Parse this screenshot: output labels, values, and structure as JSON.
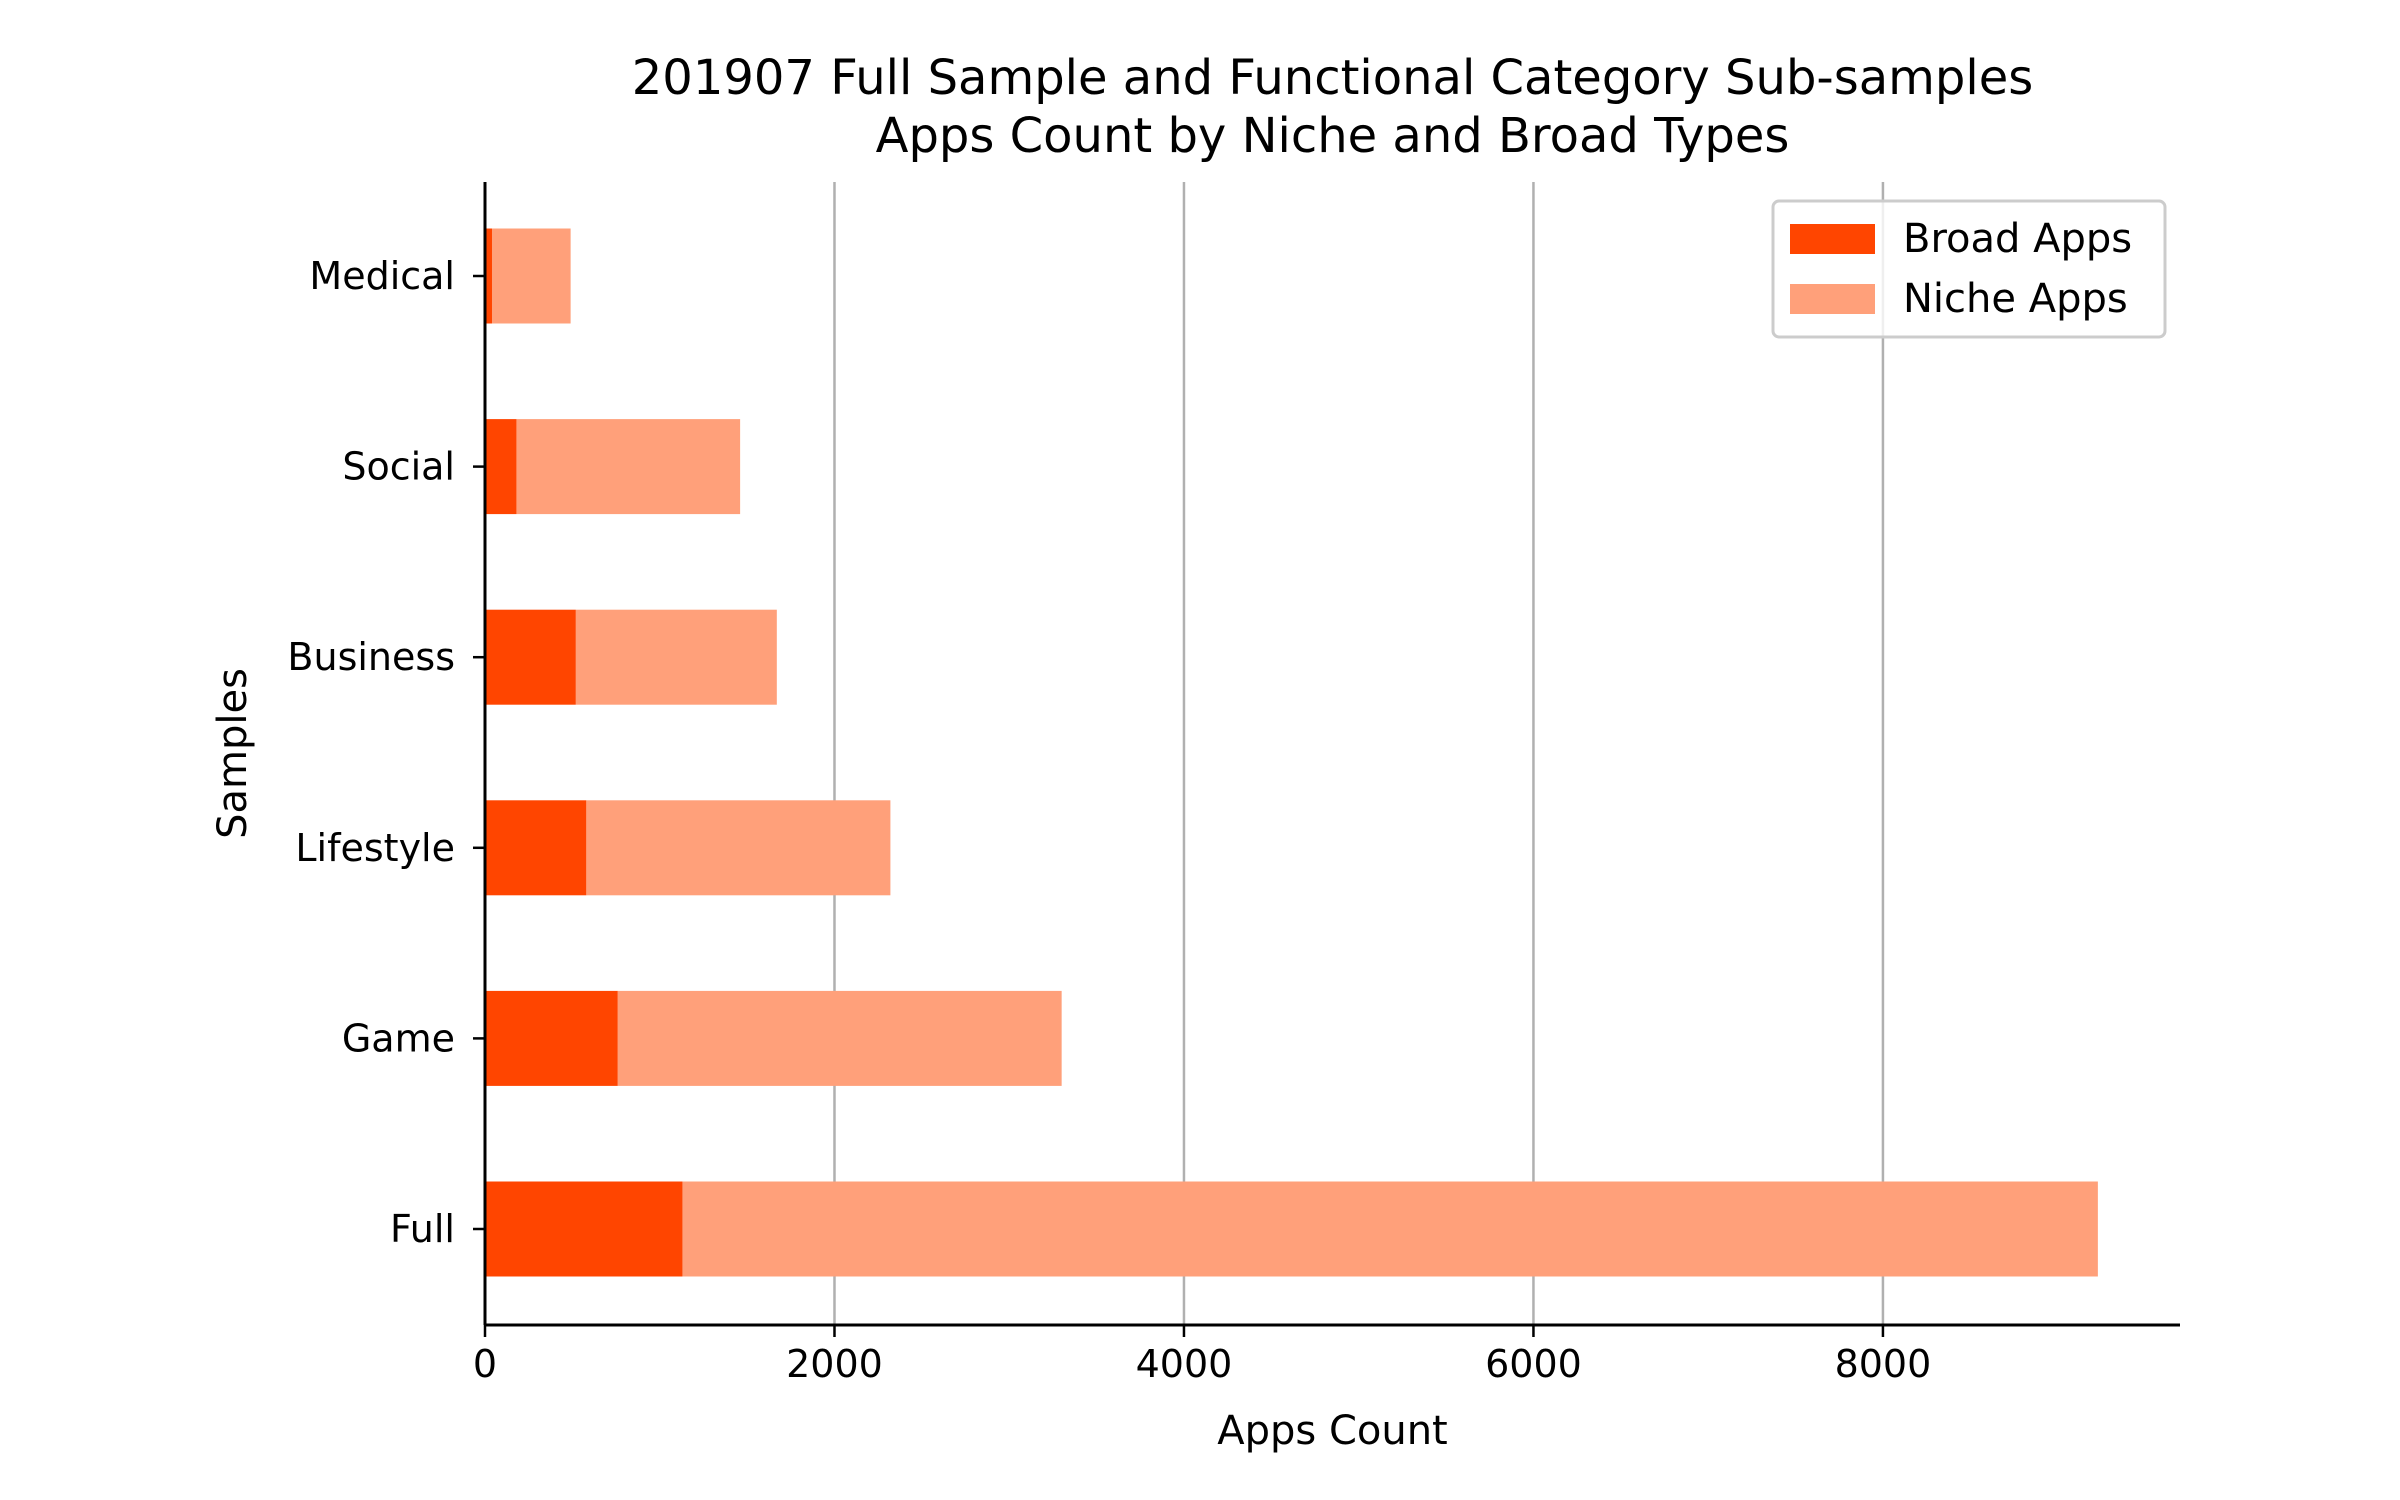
{
  "chart_data": {
    "type": "bar",
    "orientation": "horizontal",
    "stacked": true,
    "title": "201907 Full Sample and Functional Category Sub-samples",
    "subtitle": "Apps Count by Niche and Broad Types",
    "xlabel": "Apps Count",
    "ylabel": "Samples",
    "categories": [
      "Full",
      "Game",
      "Lifestyle",
      "Business",
      "Social",
      "Medical"
    ],
    "series": [
      {
        "name": "Broad Apps",
        "color": "#ff4500",
        "values": [
          1130,
          760,
          580,
          520,
          180,
          40
        ]
      },
      {
        "name": "Niche Apps",
        "color": "#ffa07a",
        "values": [
          8100,
          2540,
          1740,
          1150,
          1280,
          450
        ]
      }
    ],
    "xlim": [
      0,
      9700
    ],
    "xticks": [
      0,
      2000,
      4000,
      6000,
      8000
    ],
    "xtick_labels": [
      "0",
      "2000",
      "4000",
      "6000",
      "8000"
    ],
    "grid": "vertical",
    "legend_position": "top-right"
  }
}
